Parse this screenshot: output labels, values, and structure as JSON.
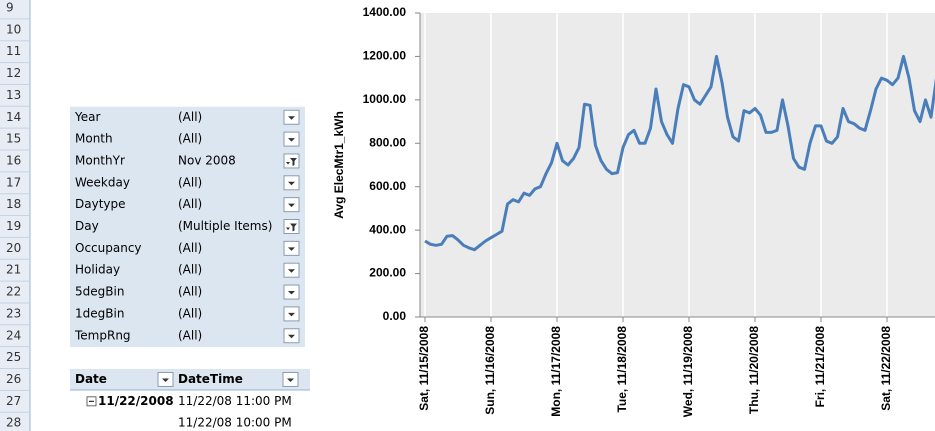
{
  "row_numbers": [
    9,
    10,
    11,
    12,
    13,
    14,
    15,
    16,
    17,
    18,
    19,
    20,
    21,
    22,
    23,
    24,
    25,
    26,
    27,
    28
  ],
  "filters": [
    {
      "field": "Year",
      "value": "(All)"
    },
    {
      "field": "Month",
      "value": "(All)"
    },
    {
      "field": "MonthYr",
      "value": "Nov 2008",
      "filtered": true
    },
    {
      "field": "Weekday",
      "value": "(All)"
    },
    {
      "field": "Daytype",
      "value": "(All)"
    },
    {
      "field": "Day",
      "value": "(Multiple Items)",
      "filtered": true
    },
    {
      "field": "Occupancy",
      "value": "(All)"
    },
    {
      "field": "Holiday",
      "value": "(All)"
    },
    {
      "field": "5degBin",
      "value": "(All)"
    },
    {
      "field": "1degBin",
      "value": "(All)"
    },
    {
      "field": "TempRng",
      "value": "(All)"
    }
  ],
  "pivot": {
    "headers": [
      "Date",
      "DateTime"
    ],
    "rows": [
      {
        "date": "11/22/2008",
        "datetime": "11/22/08 11:00 PM"
      },
      {
        "datetime": "11/22/08 10:00 PM"
      }
    ]
  },
  "chart_data": {
    "type": "line",
    "y_label": "Avg ElecMtr1_kWh",
    "x": [
      0,
      2,
      4,
      6,
      8,
      10,
      12,
      14,
      16,
      18,
      20,
      22,
      24,
      26,
      28,
      30,
      32,
      34,
      36,
      38,
      40,
      42,
      44,
      46,
      48,
      50,
      52,
      54,
      56,
      58,
      60,
      62,
      64,
      66,
      68,
      70,
      72,
      74,
      76,
      78,
      80,
      82,
      84,
      86,
      88,
      90,
      92,
      94,
      96,
      98,
      100,
      102,
      104,
      106,
      108,
      110,
      112,
      114,
      116,
      118,
      120,
      122,
      124,
      126,
      128,
      130,
      132,
      134,
      136,
      138,
      140,
      142,
      144,
      146,
      148,
      150,
      152,
      154,
      156,
      158,
      160,
      162,
      164,
      166,
      168,
      170,
      172,
      174,
      176,
      178,
      180,
      182,
      184,
      186
    ],
    "series": [
      {
        "name": "Avg ElecMtr1_kWh",
        "color": "#4a7ebb",
        "values": [
          350,
          335,
          330,
          335,
          372,
          375,
          355,
          330,
          318,
          310,
          330,
          350,
          365,
          380,
          395,
          520,
          540,
          530,
          570,
          560,
          590,
          600,
          660,
          710,
          800,
          720,
          700,
          730,
          780,
          980,
          975,
          790,
          720,
          680,
          660,
          665,
          780,
          840,
          860,
          800,
          800,
          870,
          1050,
          900,
          840,
          800,
          960,
          1070,
          1060,
          1000,
          980,
          1020,
          1060,
          1200,
          1080,
          920,
          830,
          810,
          950,
          940,
          960,
          930,
          850,
          850,
          860,
          1000,
          880,
          730,
          690,
          680,
          800,
          880,
          880,
          810,
          800,
          830,
          960,
          900,
          890,
          870,
          860,
          950,
          1050,
          1100,
          1090,
          1070,
          1100,
          1200,
          1100,
          950,
          900,
          1000,
          920,
          1100
        ]
      }
    ],
    "xlim": [
      -2,
      200
    ],
    "xticks": [
      {
        "value": 0,
        "label": "Sat, 11/15/2008"
      },
      {
        "value": 24,
        "label": "Sun, 11/16/2008"
      },
      {
        "value": 48,
        "label": "Mon, 11/17/2008"
      },
      {
        "value": 72,
        "label": "Tue, 11/18/2008"
      },
      {
        "value": 96,
        "label": "Wed, 11/19/2008"
      },
      {
        "value": 120,
        "label": "Thu, 11/20/2008"
      },
      {
        "value": 144,
        "label": "Fri, 11/21/2008"
      },
      {
        "value": 168,
        "label": "Sat, 11/22/2008"
      }
    ],
    "ylim": [
      0,
      1400
    ],
    "yticks": [
      {
        "value": 0,
        "label": "0.00"
      },
      {
        "value": 200,
        "label": "200.00"
      },
      {
        "value": 400,
        "label": "400.00"
      },
      {
        "value": 600,
        "label": "600.00"
      },
      {
        "value": 800,
        "label": "800.00"
      },
      {
        "value": 1000,
        "label": "1000.00"
      },
      {
        "value": 1200,
        "label": "1200.00"
      },
      {
        "value": 1400,
        "label": "1400.00"
      }
    ],
    "grid": true
  }
}
